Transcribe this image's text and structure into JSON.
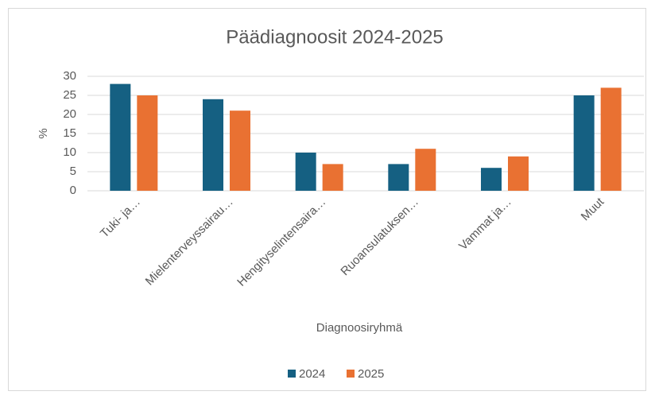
{
  "chart_data": {
    "type": "bar",
    "title": "Päädiagnoosit 2024-2025",
    "categories": [
      "Tuki- ja…",
      "Mielenterveyssairau…",
      "Hengityselintensaira…",
      "Ruoansulatuksen…",
      "Vammat ja…",
      "Muut"
    ],
    "series": [
      {
        "name": "2024",
        "color": "#156082",
        "values": [
          28,
          24,
          10,
          7,
          6,
          25
        ]
      },
      {
        "name": "2025",
        "color": "#e97132",
        "values": [
          25,
          21,
          7,
          11,
          9,
          27
        ]
      }
    ],
    "ylabel": "%",
    "xlabel": "Diagnoosiryhmä",
    "ylim": [
      0,
      30
    ],
    "yticks": [
      0,
      5,
      10,
      15,
      20,
      25,
      30
    ],
    "grid": true,
    "legend": "bottom"
  }
}
